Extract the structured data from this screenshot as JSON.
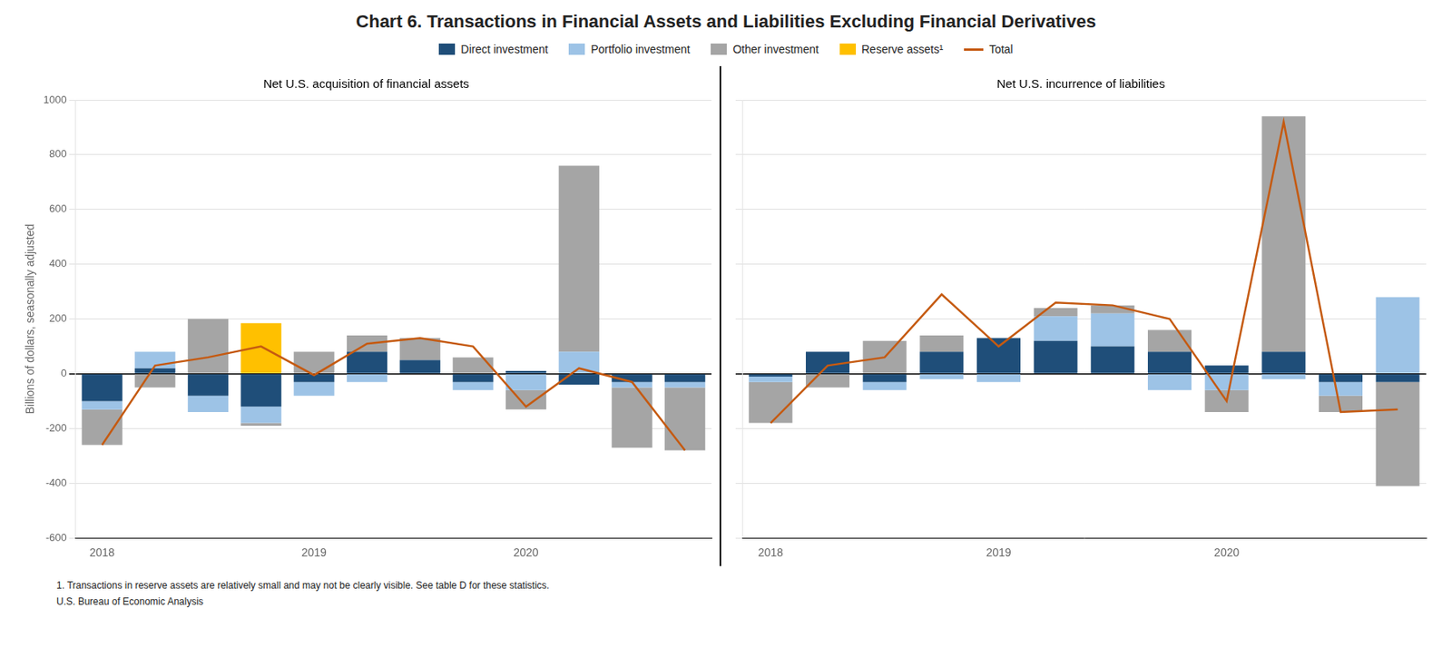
{
  "chart_data": [
    {
      "type": "bar",
      "title": "Chart 6. Transactions in Financial Assets and Liabilities Excluding Financial Derivatives",
      "subtitle": "Net U.S. acquisition of financial assets",
      "ylabel": "Billions of dollars, seasonally adjusted",
      "annotations": [
        "1. Transactions in reserve assets are relatively small and may not be clearly visible. See table D for these statistics.",
        "U.S. Bureau of Economic Analysis"
      ],
      "categories": [
        "2018",
        null,
        null,
        null,
        "2019",
        null,
        null,
        null,
        "2020",
        null,
        null,
        null
      ],
      "series": [
        {
          "name": "Direct investment",
          "type": "bar",
          "color": "#1f4e79",
          "values": [
            -100,
            20,
            -80,
            -120,
            -30,
            80,
            50,
            -30,
            10,
            -40,
            -30,
            -30
          ]
        },
        {
          "name": "Portfolio investment",
          "type": "bar",
          "color": "#9dc3e6",
          "values": [
            -30,
            60,
            -60,
            -60,
            -50,
            -30,
            0,
            -30,
            -60,
            80,
            -20,
            -20
          ]
        },
        {
          "name": "Other investment",
          "type": "bar",
          "color": "#a5a5a5",
          "values": [
            -130,
            -50,
            200,
            -10,
            80,
            60,
            80,
            60,
            -70,
            680,
            -220,
            -230
          ]
        },
        {
          "name": "Reserve assets¹",
          "type": "bar",
          "color": "#ffc000",
          "values": [
            0,
            0,
            0,
            185,
            0,
            0,
            0,
            0,
            0,
            0,
            0,
            0
          ]
        },
        {
          "name": "Total",
          "type": "line",
          "color": "#c55a11",
          "values": [
            -260,
            30,
            60,
            100,
            -5,
            110,
            130,
            100,
            -120,
            20,
            -30,
            -280
          ]
        }
      ],
      "ylim": [
        -600,
        1000
      ],
      "yticks": [
        -600,
        -400,
        -200,
        0,
        200,
        400,
        600,
        800,
        1000
      ],
      "grid": "y",
      "stacked": true,
      "legend": "top"
    },
    {
      "type": "bar",
      "subtitle": "Net U.S. incurrence of liabilities",
      "categories": [
        "2018",
        null,
        null,
        null,
        "2019",
        null,
        null,
        null,
        "2020",
        null,
        null,
        null
      ],
      "series": [
        {
          "name": "Direct investment",
          "type": "bar",
          "color": "#1f4e79",
          "values": [
            -10,
            80,
            -30,
            80,
            130,
            120,
            100,
            80,
            30,
            80,
            -30,
            -30
          ]
        },
        {
          "name": "Portfolio investment",
          "type": "bar",
          "color": "#9dc3e6",
          "values": [
            -20,
            0,
            -30,
            -20,
            -30,
            90,
            120,
            -60,
            -60,
            -20,
            -50,
            280
          ]
        },
        {
          "name": "Other investment",
          "type": "bar",
          "color": "#a5a5a5",
          "values": [
            -150,
            -50,
            120,
            60,
            0,
            30,
            30,
            80,
            -80,
            860,
            -60,
            -380
          ]
        },
        {
          "name": "Reserve assets¹",
          "type": "bar",
          "color": "#ffc000",
          "values": [
            0,
            0,
            0,
            0,
            0,
            0,
            0,
            0,
            0,
            0,
            0,
            0
          ]
        },
        {
          "name": "Total",
          "type": "line",
          "color": "#c55a11",
          "values": [
            -180,
            30,
            60,
            290,
            100,
            260,
            250,
            200,
            -100,
            920,
            -140,
            -130
          ]
        }
      ],
      "ylim": [
        -600,
        1000
      ],
      "yticks": [
        -600,
        -400,
        -200,
        0,
        200,
        400,
        600,
        800,
        1000
      ],
      "grid": "y",
      "stacked": true,
      "tick_labels": "x"
    }
  ]
}
